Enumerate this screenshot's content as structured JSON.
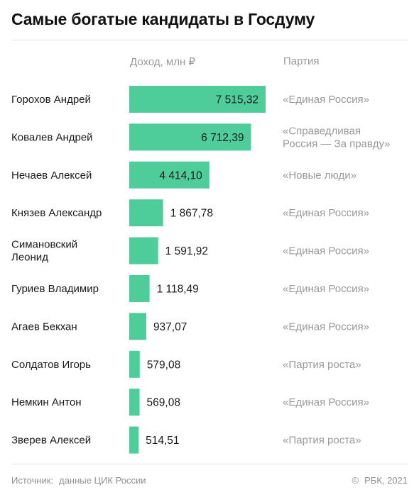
{
  "title": "Самые богатые кандидаты в Госдуму",
  "headers": {
    "income": "Доход, млн ₽",
    "party": "Партия"
  },
  "colors": {
    "bar": "#4ecd9a",
    "party_text": "#9a9a9a",
    "name_text": "#1a1a1a"
  },
  "chart_data": {
    "type": "bar",
    "orientation": "horizontal",
    "categories": [
      [
        "Горохов Андрей"
      ],
      [
        "Ковалев Андрей"
      ],
      [
        "Нечаев Алексей"
      ],
      [
        "Князев Александр"
      ],
      [
        "Симановский",
        "Леонид"
      ],
      [
        "Гуриев Владимир"
      ],
      [
        "Агаев Бекхан"
      ],
      [
        "Солдатов Игорь"
      ],
      [
        "Немкин Антон"
      ],
      [
        "Зверев Алексей"
      ]
    ],
    "values": [
      7515.32,
      6712.39,
      4414.1,
      1867.78,
      1591.92,
      1118.49,
      937.07,
      579.08,
      569.08,
      514.51
    ],
    "value_labels": [
      "7 515,32",
      "6 712,39",
      "4 414,10",
      "1 867,78",
      "1 591,92",
      "1 118,49",
      "937,07",
      "579,08",
      "569,08",
      "514,51"
    ],
    "parties": [
      [
        "«Единая Россия»"
      ],
      [
        "«Справедливая",
        "Россия — За правду»"
      ],
      [
        "«Новые люди»"
      ],
      [
        "«Единая Россия»"
      ],
      [
        "«Единая Россия»"
      ],
      [
        "«Единая Россия»"
      ],
      [
        "«Единая Россия»"
      ],
      [
        "«Партия роста»"
      ],
      [
        "«Единая Россия»"
      ],
      [
        "«Партия роста»"
      ]
    ],
    "xlim": [
      0,
      7515.32
    ],
    "grid": false,
    "legend": "none"
  },
  "footer": {
    "source_label": "Источник:",
    "source_value": "данные ЦИК России",
    "copyright_sign": "©",
    "copyright": "РБК, 2021"
  }
}
